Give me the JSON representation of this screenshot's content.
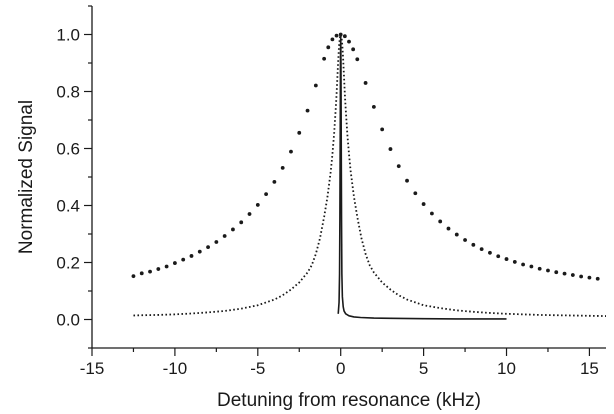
{
  "chart_data": {
    "type": "scatter",
    "title": "",
    "xlabel": "Detuning from resonance (kHz)",
    "ylabel": "Normalized Signal",
    "xlim": [
      -15,
      16
    ],
    "ylim": [
      -0.1,
      1.1
    ],
    "xticks": [
      -15,
      -10,
      -5,
      0,
      5,
      10,
      15
    ],
    "xtick_labels": [
      "-15",
      "-10",
      "-5",
      "0",
      "5",
      "10",
      "15"
    ],
    "yticks": [
      0.0,
      0.2,
      0.4,
      0.6,
      0.8,
      1.0
    ],
    "ytick_labels": [
      "0.0",
      "0.2",
      "0.4",
      "0.6",
      "0.8",
      "1.0"
    ],
    "grid": false,
    "legend": "none",
    "colors": {
      "ink": "#1a1a1a"
    },
    "series": [
      {
        "style": "sparse-dots",
        "x": [
          -12.5,
          -12,
          -11.5,
          -11,
          -10.5,
          -10,
          -9.5,
          -9,
          -8.5,
          -8,
          -7.5,
          -7,
          -6.5,
          -6,
          -5.5,
          -5,
          -4.5,
          -4,
          -3.5,
          -3,
          -2.5,
          -2,
          -1.5,
          -1,
          -0.75,
          -0.5,
          -0.25,
          0,
          0.25,
          0.5,
          0.75,
          1,
          1.5,
          2,
          2.5,
          3,
          3.5,
          4,
          4.5,
          5,
          5.5,
          6,
          6.5,
          7,
          7.5,
          8,
          8.5,
          9,
          9.5,
          10,
          10.5,
          11,
          11.5,
          12,
          12.5,
          13,
          13.5,
          14,
          14.5,
          15,
          15.5
        ],
        "y": [
          0.152,
          0.162,
          0.168,
          0.177,
          0.186,
          0.198,
          0.21,
          0.223,
          0.238,
          0.254,
          0.272,
          0.293,
          0.316,
          0.341,
          0.37,
          0.402,
          0.44,
          0.483,
          0.532,
          0.589,
          0.655,
          0.733,
          0.821,
          0.915,
          0.955,
          0.983,
          0.996,
          1.0,
          0.994,
          0.975,
          0.948,
          0.913,
          0.83,
          0.746,
          0.667,
          0.598,
          0.538,
          0.487,
          0.443,
          0.405,
          0.372,
          0.344,
          0.319,
          0.298,
          0.279,
          0.262,
          0.247,
          0.234,
          0.222,
          0.212,
          0.202,
          0.193,
          0.186,
          0.178,
          0.172,
          0.166,
          0.161,
          0.156,
          0.151,
          0.147,
          0.143
        ]
      },
      {
        "style": "dense-dots",
        "x": [
          -12.5,
          -12,
          -11,
          -10,
          -9,
          -8,
          -7,
          -6,
          -5,
          -4,
          -3.5,
          -3,
          -2.5,
          -2,
          -1.75,
          -1.5,
          -1.25,
          -1,
          -0.8,
          -0.6,
          -0.5,
          -0.4,
          -0.3,
          -0.25,
          -0.2,
          -0.15,
          -0.1,
          -0.05,
          0,
          0.05,
          0.1,
          0.15,
          0.2,
          0.25,
          0.3,
          0.4,
          0.5,
          0.6,
          0.8,
          1,
          1.25,
          1.5,
          1.75,
          2,
          2.5,
          3,
          3.5,
          4,
          5,
          6,
          7,
          8,
          9,
          10,
          11,
          12,
          13,
          14,
          15,
          16
        ],
        "y": [
          0.014,
          0.015,
          0.016,
          0.018,
          0.021,
          0.025,
          0.03,
          0.038,
          0.05,
          0.07,
          0.085,
          0.105,
          0.13,
          0.165,
          0.19,
          0.23,
          0.285,
          0.36,
          0.43,
          0.52,
          0.58,
          0.65,
          0.74,
          0.79,
          0.85,
          0.91,
          0.96,
          0.99,
          1.0,
          0.99,
          0.96,
          0.91,
          0.85,
          0.79,
          0.74,
          0.65,
          0.58,
          0.52,
          0.43,
          0.36,
          0.285,
          0.23,
          0.19,
          0.165,
          0.13,
          0.105,
          0.085,
          0.07,
          0.05,
          0.04,
          0.032,
          0.027,
          0.023,
          0.02,
          0.018,
          0.016,
          0.015,
          0.014,
          0.013,
          0.012
        ]
      },
      {
        "style": "solid-line",
        "x": [
          -0.15,
          -0.1,
          -0.07,
          -0.05,
          -0.03,
          -0.015,
          0,
          0.015,
          0.03,
          0.05,
          0.07,
          0.1,
          0.15,
          0.2,
          0.3,
          0.5,
          0.8,
          1.2,
          2,
          3,
          5,
          7,
          10
        ],
        "y": [
          0.02,
          0.06,
          0.16,
          0.35,
          0.65,
          0.9,
          1.0,
          0.9,
          0.65,
          0.35,
          0.16,
          0.08,
          0.045,
          0.03,
          0.02,
          0.013,
          0.009,
          0.007,
          0.005,
          0.004,
          0.003,
          0.002,
          0.002
        ]
      }
    ]
  }
}
